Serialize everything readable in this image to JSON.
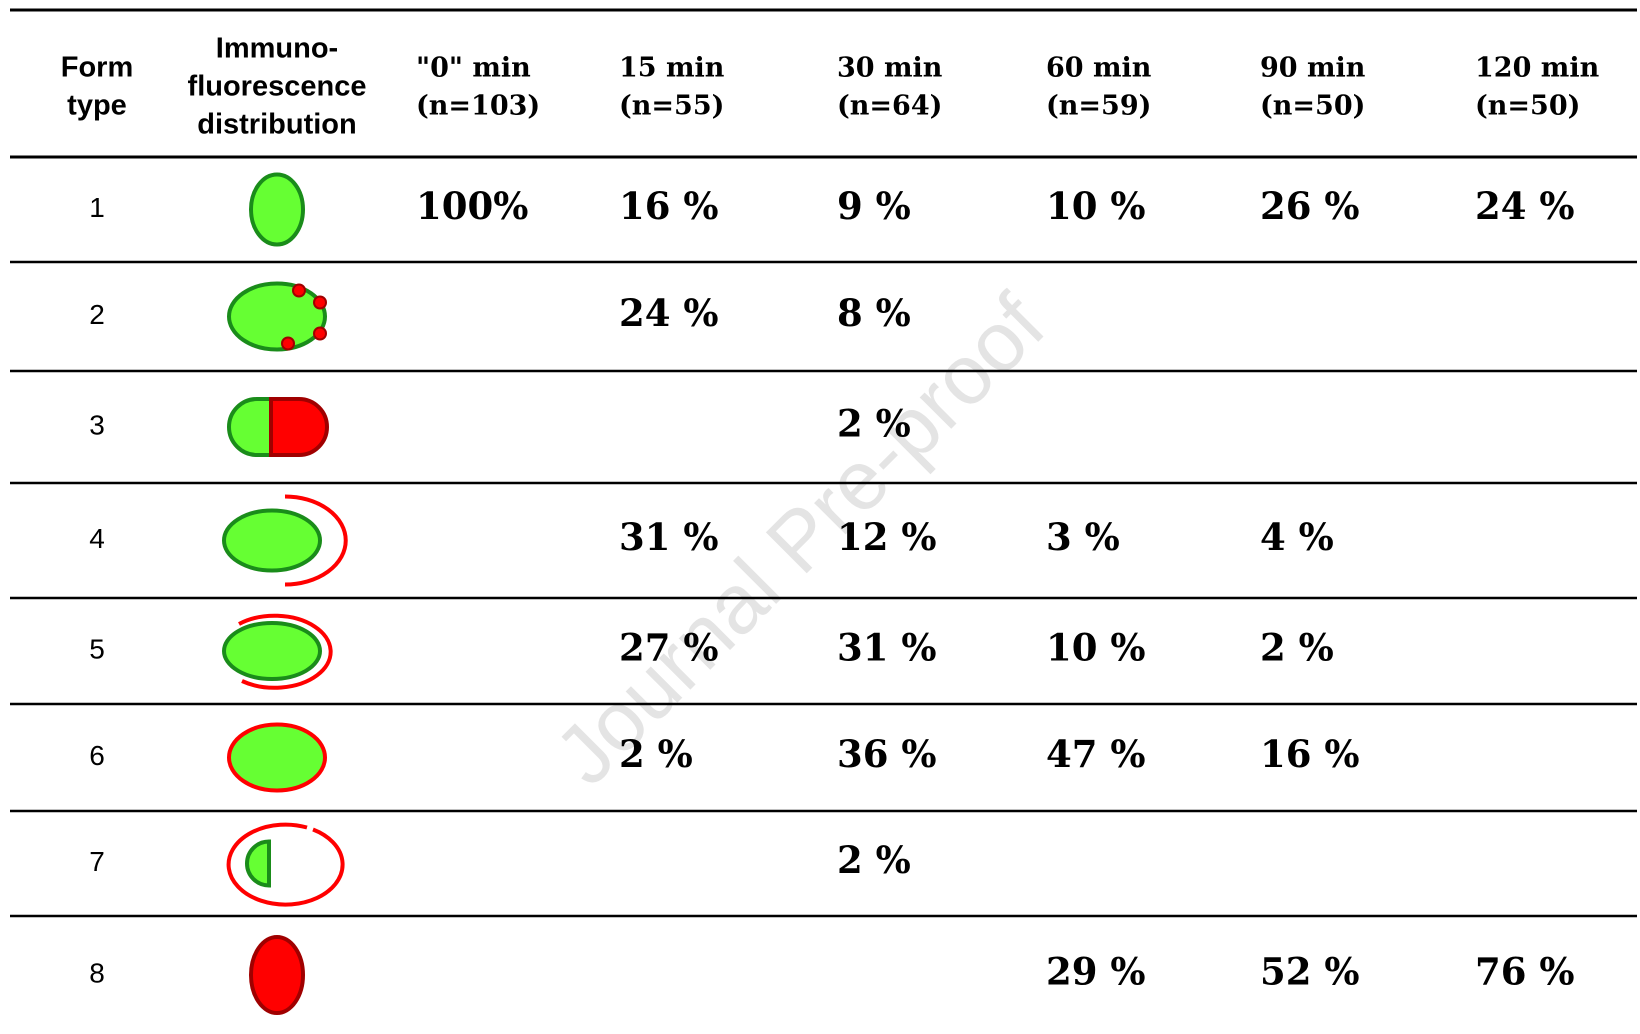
{
  "table": {
    "header": [
      [
        "Form",
        "type"
      ],
      [
        "Immuno-",
        "fluorescence",
        "distribution"
      ],
      [
        "\"0\" min",
        "(n=103)"
      ],
      [
        "15 min",
        "(n=55)"
      ],
      [
        "30 min",
        "(n=64)"
      ],
      [
        "60 min",
        "(n=59)"
      ],
      [
        "90 min",
        "(n=50)"
      ],
      [
        "120 min",
        "(n=50)"
      ]
    ],
    "rows": [
      {
        "form": "1",
        "values": [
          "100%",
          "16 %",
          "9 %",
          "10 %",
          "26 %",
          "24 %"
        ]
      },
      {
        "form": "2",
        "values": [
          null,
          "24 %",
          "8 %",
          null,
          null,
          null
        ]
      },
      {
        "form": "3",
        "values": [
          null,
          null,
          "2 %",
          null,
          null,
          null
        ]
      },
      {
        "form": "4",
        "values": [
          null,
          "31 %",
          "12 %",
          "3 %",
          "4 %",
          null
        ]
      },
      {
        "form": "5",
        "values": [
          null,
          "27 %",
          "31 %",
          "10 %",
          "2 %",
          null
        ]
      },
      {
        "form": "6",
        "values": [
          null,
          "2 %",
          "36 %",
          "47 %",
          "16 %",
          null
        ]
      },
      {
        "form": "7",
        "values": [
          null,
          null,
          "2 %",
          null,
          null,
          null
        ]
      },
      {
        "form": "8",
        "values": [
          null,
          null,
          null,
          "29 %",
          "52 %",
          "76 %"
        ]
      }
    ]
  },
  "watermark": "Journal Pre-proof"
}
